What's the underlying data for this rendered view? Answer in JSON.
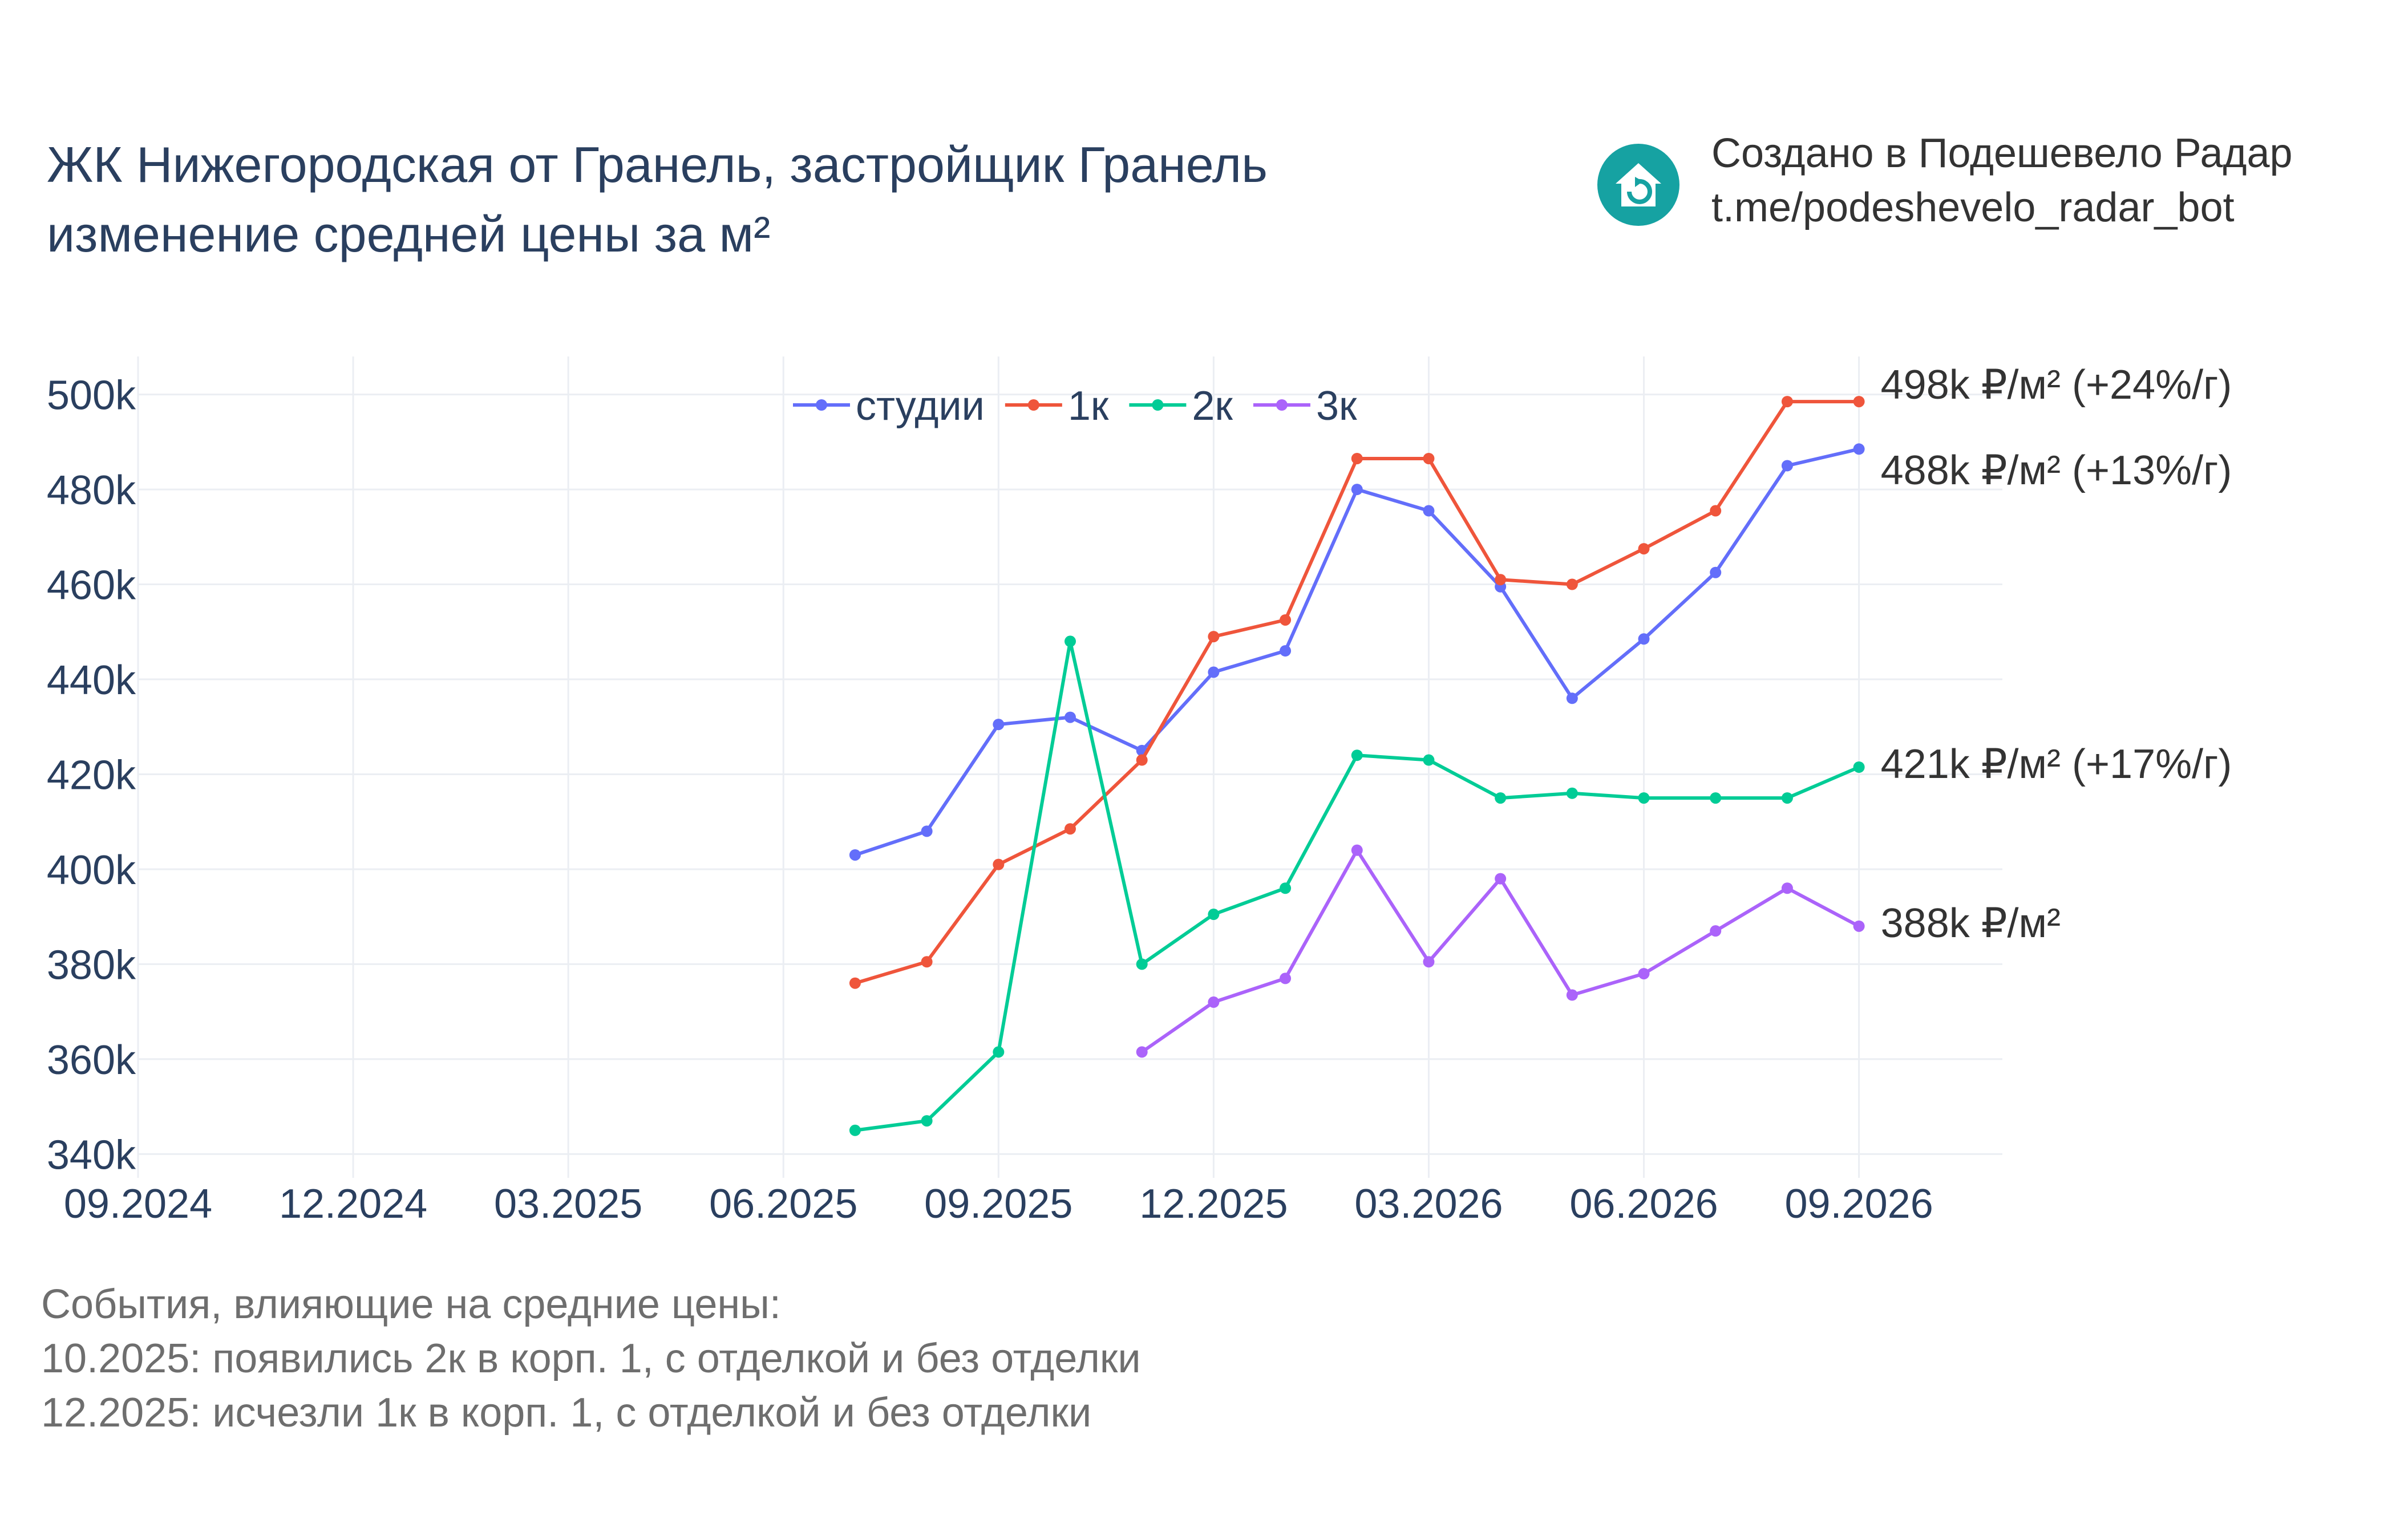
{
  "header": {
    "title_line1": "ЖК Нижегородская от Гранель, застройщик Гранель",
    "title_line2": "изменение средней цены за м²"
  },
  "credit": {
    "line1": "Создано в Подешевело Радар",
    "line2": "t.me/podeshevelo_radar_bot",
    "icon": "house-refresh-icon",
    "icon_color": "#16a2a2"
  },
  "events": {
    "heading": "События, влияющие на средние цены:",
    "items": [
      "10.2025: появились 2к в корп. 1, с отделкой и без отделки",
      "12.2025: исчезли 1к в корп. 1, с отделкой и без отделки"
    ]
  },
  "chart_data": {
    "type": "line",
    "title": "",
    "xlabel": "",
    "ylabel": "",
    "x": [
      "2025-07",
      "2025-08",
      "2025-09",
      "2025-10",
      "2025-11",
      "2025-12",
      "2026-01",
      "2026-02",
      "2026-03",
      "2026-04",
      "2026-05",
      "2026-06",
      "2026-07",
      "2026-08",
      "2026-09"
    ],
    "xlim": [
      "2024-09",
      "2026-11"
    ],
    "ylim": [
      335000,
      508000
    ],
    "x_ticks": [
      "2024-09",
      "2024-12",
      "2025-03",
      "2025-06",
      "2025-09",
      "2025-12",
      "2026-03",
      "2026-06",
      "2026-09"
    ],
    "x_tick_labels": [
      "09.2024",
      "12.2024",
      "03.2025",
      "06.2025",
      "09.2025",
      "12.2025",
      "03.2026",
      "06.2026",
      "09.2026"
    ],
    "y_ticks": [
      340000,
      360000,
      380000,
      400000,
      420000,
      440000,
      460000,
      480000,
      500000
    ],
    "y_tick_labels": [
      "340k",
      "360k",
      "380k",
      "400k",
      "420k",
      "440k",
      "460k",
      "480k",
      "500k"
    ],
    "grid": true,
    "legend_position": "top-center",
    "series": [
      {
        "name": "студии",
        "color": "#636efa",
        "values": [
          403000,
          408000,
          430500,
          432000,
          425000,
          441500,
          446000,
          480000,
          475500,
          459500,
          436000,
          448500,
          462500,
          485000,
          488500
        ],
        "end_label": "488k ₽/м² (+13%/г)"
      },
      {
        "name": "1к",
        "color": "#ef553b",
        "values": [
          376000,
          380500,
          401000,
          408500,
          423000,
          449000,
          452500,
          486500,
          486500,
          461000,
          460000,
          467500,
          475500,
          498500,
          498500
        ],
        "end_label": "498k ₽/м² (+24%/г)"
      },
      {
        "name": "2к",
        "color": "#00cc96",
        "values": [
          345000,
          347000,
          361500,
          448000,
          380000,
          390500,
          396000,
          424000,
          423000,
          415000,
          416000,
          415000,
          415000,
          415000,
          421500
        ],
        "end_label": "421k ₽/м² (+17%/г)"
      },
      {
        "name": "3к",
        "color": "#ab63fa",
        "values": [
          null,
          null,
          null,
          null,
          361500,
          372000,
          377000,
          404000,
          380500,
          398000,
          373500,
          378000,
          387000,
          396000,
          388000
        ],
        "end_label": "388k ₽/м²"
      }
    ]
  }
}
